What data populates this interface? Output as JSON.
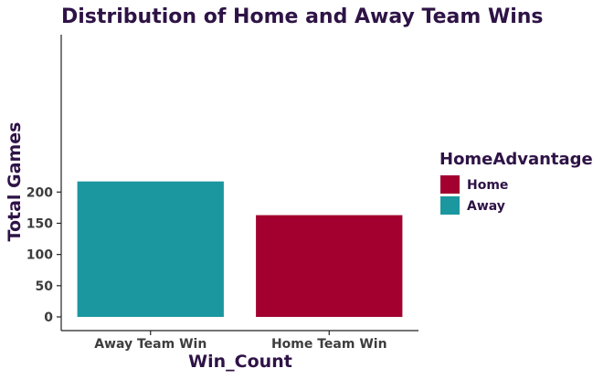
{
  "chart_data": {
    "type": "bar",
    "title": "Distribution of Home and Away Team Wins",
    "xlabel": "Win_Count",
    "ylabel": "Total Games",
    "categories": [
      "Away Team Win",
      "Home Team Win"
    ],
    "values": [
      217,
      163
    ],
    "bar_colors": [
      "#1b979f",
      "#a30030"
    ],
    "ylim": [
      0,
      225
    ],
    "yticks": [
      0,
      50,
      100,
      150,
      200
    ],
    "grid": false,
    "legend": {
      "title": "HomeAdvantage",
      "placement": "right",
      "entries": [
        {
          "label": "Home",
          "color": "#a30030"
        },
        {
          "label": "Away",
          "color": "#1b979f"
        }
      ]
    }
  }
}
